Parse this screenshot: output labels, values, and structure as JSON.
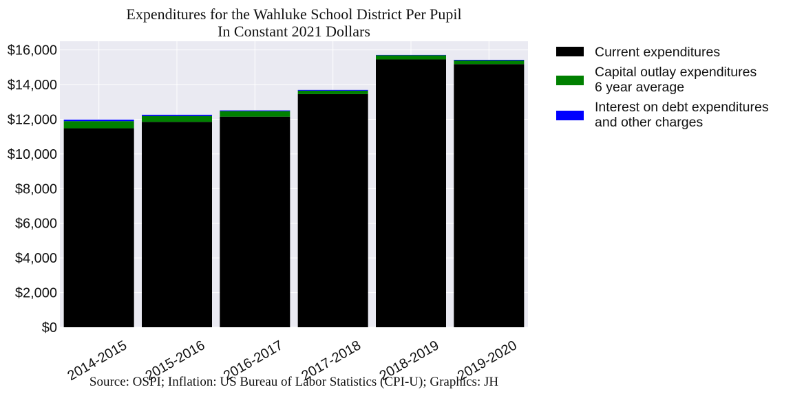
{
  "chart_data": {
    "type": "bar",
    "stacked": true,
    "title": "Expenditures for the Wahluke School District Per Pupil",
    "subtitle": "In Constant 2021 Dollars",
    "xlabel": "",
    "ylabel": "",
    "categories": [
      "2014-2015",
      "2015-2016",
      "2016-2017",
      "2017-2018",
      "2018-2019",
      "2019-2020"
    ],
    "series": [
      {
        "name": "Current expenditures",
        "color": "#000000",
        "values": [
          11480,
          11850,
          12150,
          13450,
          15450,
          15180
        ]
      },
      {
        "name": "Capital outlay expenditures\n6 year average",
        "color": "#008000",
        "values": [
          410,
          340,
          320,
          200,
          240,
          210
        ]
      },
      {
        "name": "Interest on debt expenditures\nand other charges",
        "color": "#0000ff",
        "values": [
          90,
          70,
          40,
          40,
          20,
          40
        ]
      }
    ],
    "ylim": [
      0,
      16500
    ],
    "yticks": [
      0,
      2000,
      4000,
      6000,
      8000,
      10000,
      12000,
      14000,
      16000
    ],
    "ytick_labels": [
      "$0",
      "$2,000",
      "$4,000",
      "$6,000",
      "$8,000",
      "$10,000",
      "$12,000",
      "$14,000",
      "$16,000"
    ],
    "grid": true,
    "legend_placement": "outside-right",
    "background_color": "#eaeaf2",
    "source": "Source: OSPI; Inflation: US Bureau of Labor Statistics (CPI-U); Graphics: JH"
  }
}
